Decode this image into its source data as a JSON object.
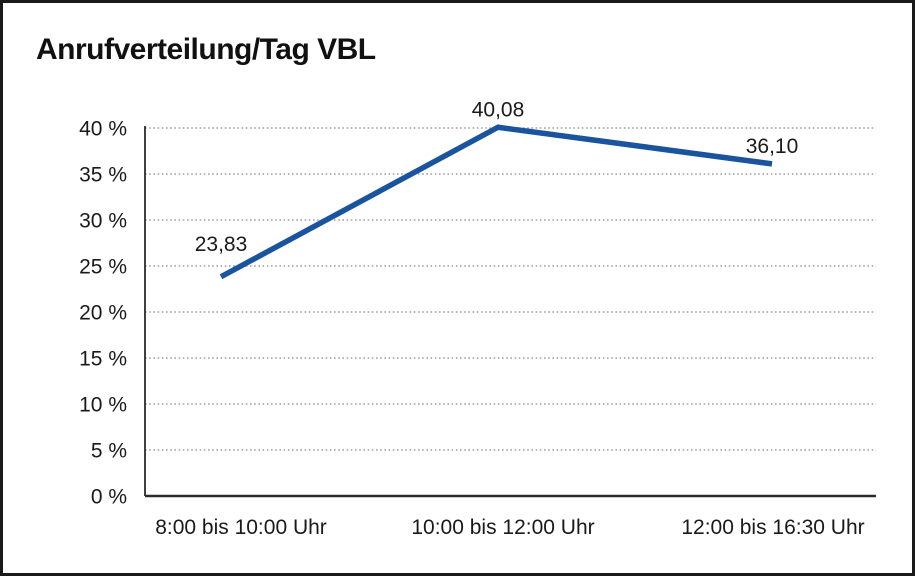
{
  "chart_data": {
    "type": "line",
    "title": "Anrufverteilung/Tag VBL",
    "categories": [
      "8:00 bis 10:00 Uhr",
      "10:00 bis 12:00 Uhr",
      "12:00 bis 16:30 Uhr"
    ],
    "values": [
      23.83,
      40.08,
      36.1
    ],
    "value_labels": [
      "23,83",
      "40,08",
      "36,10"
    ],
    "xlabel": "",
    "ylabel": "",
    "ylim": [
      0,
      40
    ],
    "y_tick_step": 5,
    "y_ticks": [
      0,
      5,
      10,
      15,
      20,
      25,
      30,
      35,
      40
    ],
    "y_tick_labels": [
      "0 %",
      "5 %",
      "10 %",
      "15 %",
      "20 %",
      "25 %",
      "30 %",
      "35 %",
      "40 %"
    ],
    "grid": "horizontal-dotted",
    "legend": "none",
    "colors": {
      "line": "#1A549E",
      "text": "#1a1a1a",
      "gridline": "#8c8c8c",
      "axis": "#2b2b2b",
      "frame_border": "#1a1a1a",
      "background": "#ffffff"
    }
  }
}
